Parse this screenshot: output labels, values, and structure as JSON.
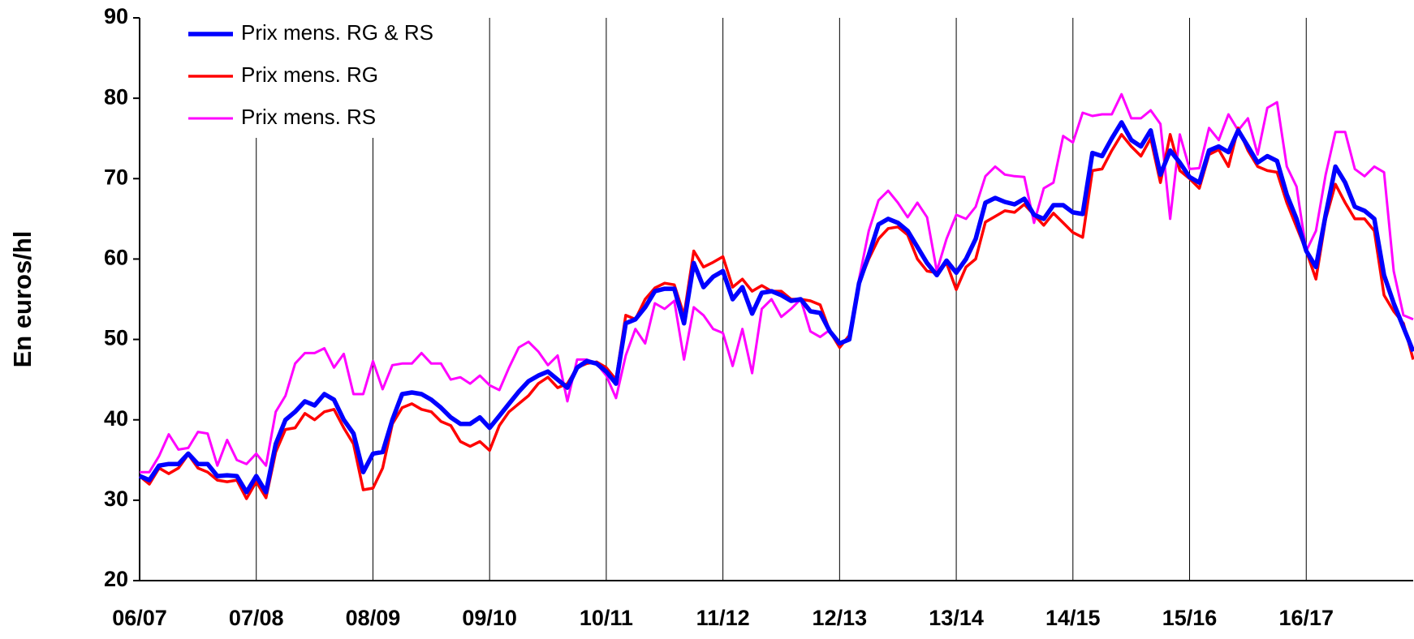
{
  "chart_data": {
    "type": "line",
    "y_label": "En euros/hl",
    "categories": [
      "06/07",
      null,
      null,
      null,
      null,
      null,
      null,
      null,
      null,
      null,
      null,
      null,
      "07/08",
      null,
      null,
      null,
      null,
      null,
      null,
      null,
      null,
      null,
      null,
      null,
      "08/09",
      null,
      null,
      null,
      null,
      null,
      null,
      null,
      null,
      null,
      null,
      null,
      "09/10",
      null,
      null,
      null,
      null,
      null,
      null,
      null,
      null,
      null,
      null,
      null,
      "10/11",
      null,
      null,
      null,
      null,
      null,
      null,
      null,
      null,
      null,
      null,
      null,
      "11/12",
      null,
      null,
      null,
      null,
      null,
      null,
      null,
      null,
      null,
      null,
      null,
      "12/13",
      null,
      null,
      null,
      null,
      null,
      null,
      null,
      null,
      null,
      null,
      null,
      "13/14",
      null,
      null,
      null,
      null,
      null,
      null,
      null,
      null,
      null,
      null,
      null,
      "14/15",
      null,
      null,
      null,
      null,
      null,
      null,
      null,
      null,
      null,
      null,
      null,
      "15/16",
      null,
      null,
      null,
      null,
      null,
      null,
      null,
      null,
      null,
      null,
      null,
      "16/17",
      null,
      null,
      null,
      null,
      null,
      null,
      null,
      null,
      null,
      null,
      null
    ],
    "series": [
      {
        "name": "Prix mens. RG & RS",
        "color": "#0000ff",
        "values": [
          33,
          32.5,
          34.3,
          34.5,
          34.5,
          35.8,
          34.5,
          34.5,
          33,
          33.1,
          33,
          31,
          33,
          31,
          37,
          40,
          41,
          42.3,
          41.8,
          43.2,
          42.5,
          40,
          38.3,
          33.5,
          35.8,
          36,
          40,
          43.2,
          43.4,
          43.2,
          42.5,
          41.5,
          40.3,
          39.5,
          39.5,
          40.3,
          39,
          40.5,
          42,
          43.5,
          44.8,
          45.5,
          46,
          45,
          44,
          46.5,
          47.3,
          47,
          46,
          44.5,
          52,
          52.5,
          54,
          56,
          56.3,
          56.3,
          52,
          59.5,
          56.5,
          57.8,
          58.5,
          55,
          56.5,
          53.2,
          55.8,
          56,
          55.5,
          54.8,
          55,
          53.5,
          53.3,
          51,
          49.5,
          50,
          57,
          60.5,
          64.3,
          65,
          64.5,
          63.5,
          61.5,
          59.5,
          58,
          59.8,
          58.3,
          60,
          62.5,
          67,
          67.6,
          67.1,
          66.8,
          67.5,
          65.5,
          65,
          66.7,
          66.7,
          65.8,
          65.6,
          73.2,
          72.8,
          75,
          77,
          74.8,
          74,
          76,
          70.5,
          73.5,
          72,
          70.2,
          69.5,
          73.5,
          74,
          73.3,
          76,
          74,
          72,
          72.8,
          72.2,
          68,
          65,
          61,
          59,
          65.5,
          71.5,
          69.5,
          66.5,
          66,
          65,
          58,
          54.5,
          51.5,
          48.5
        ]
      },
      {
        "name": "Prix mens. RG",
        "color": "#ff0000",
        "values": [
          33,
          32,
          34,
          33.3,
          34,
          35.7,
          34,
          33.5,
          32.5,
          32.3,
          32.5,
          30.2,
          32.3,
          30.3,
          36,
          38.8,
          39,
          40.8,
          40,
          41,
          41.3,
          39,
          37,
          31.3,
          31.5,
          34,
          39.5,
          41.5,
          42,
          41.3,
          41,
          39.8,
          39.3,
          37.3,
          36.7,
          37.3,
          36.2,
          39.3,
          41,
          42,
          43,
          44.5,
          45.3,
          44,
          44.5,
          46.5,
          47,
          47.2,
          46.5,
          45,
          53,
          52.5,
          55,
          56.4,
          57,
          56.8,
          53,
          61,
          59,
          59.6,
          60.3,
          56.5,
          57.5,
          56,
          56.7,
          56,
          56,
          55,
          55,
          54.8,
          54.3,
          51,
          49,
          50.5,
          57,
          60,
          62.5,
          63.8,
          64,
          63,
          60,
          58.5,
          58.3,
          59.5,
          56.2,
          59,
          60,
          64.6,
          65.3,
          66,
          65.8,
          66.8,
          65.5,
          64.2,
          65.7,
          64.5,
          63.3,
          62.7,
          71,
          71.2,
          73.5,
          75.5,
          74,
          72.8,
          75,
          69.5,
          75.5,
          71,
          70,
          68.8,
          73,
          73.6,
          71.5,
          76.3,
          73.5,
          71.5,
          71,
          70.8,
          67,
          64,
          61,
          57.5,
          65,
          69.3,
          67,
          65,
          65,
          63.5,
          55.5,
          53.5,
          52,
          47.5
        ]
      },
      {
        "name": "Prix mens. RS",
        "color": "#ff00ff",
        "values": [
          33.5,
          33.5,
          35.5,
          38.2,
          36.3,
          36.5,
          38.5,
          38.3,
          34.3,
          37.5,
          35,
          34.5,
          35.8,
          34.3,
          41,
          43,
          47,
          48.3,
          48.3,
          48.9,
          46.5,
          48.2,
          43.2,
          43.2,
          47.3,
          43.8,
          46.8,
          47,
          47,
          48.3,
          47,
          47,
          45,
          45.3,
          44.5,
          45.5,
          44.3,
          43.7,
          46.5,
          49,
          49.7,
          48.5,
          46.8,
          48,
          42.3,
          47.5,
          47.5,
          47,
          45.5,
          42.7,
          48,
          51.3,
          49.5,
          54.5,
          53.8,
          54.8,
          47.5,
          54,
          53,
          51.3,
          50.8,
          46.7,
          51.3,
          45.8,
          53.8,
          55,
          52.8,
          53.8,
          55,
          51,
          50.3,
          51.2,
          49.3,
          50,
          57.5,
          63.5,
          67.3,
          68.5,
          67,
          65.2,
          67,
          65.2,
          58.5,
          62.5,
          65.5,
          65,
          66.5,
          70.3,
          71.5,
          70.5,
          70.3,
          70.2,
          64.5,
          68.8,
          69.5,
          75.3,
          74.5,
          78.2,
          77.8,
          78,
          78,
          80.5,
          77.5,
          77.5,
          78.5,
          76.8,
          65,
          75.5,
          71.2,
          71.3,
          76.3,
          74.8,
          78,
          76,
          77.5,
          73,
          78.8,
          79.5,
          71.5,
          69,
          61,
          63.5,
          70.5,
          75.8,
          75.8,
          71.2,
          70.3,
          71.5,
          70.8,
          58.5,
          53,
          52.5
        ]
      }
    ],
    "ylim": [
      20,
      90
    ],
    "yticks": [
      20,
      30,
      40,
      50,
      60,
      70,
      80,
      90
    ],
    "xgrid": true,
    "legend": "upper left"
  }
}
